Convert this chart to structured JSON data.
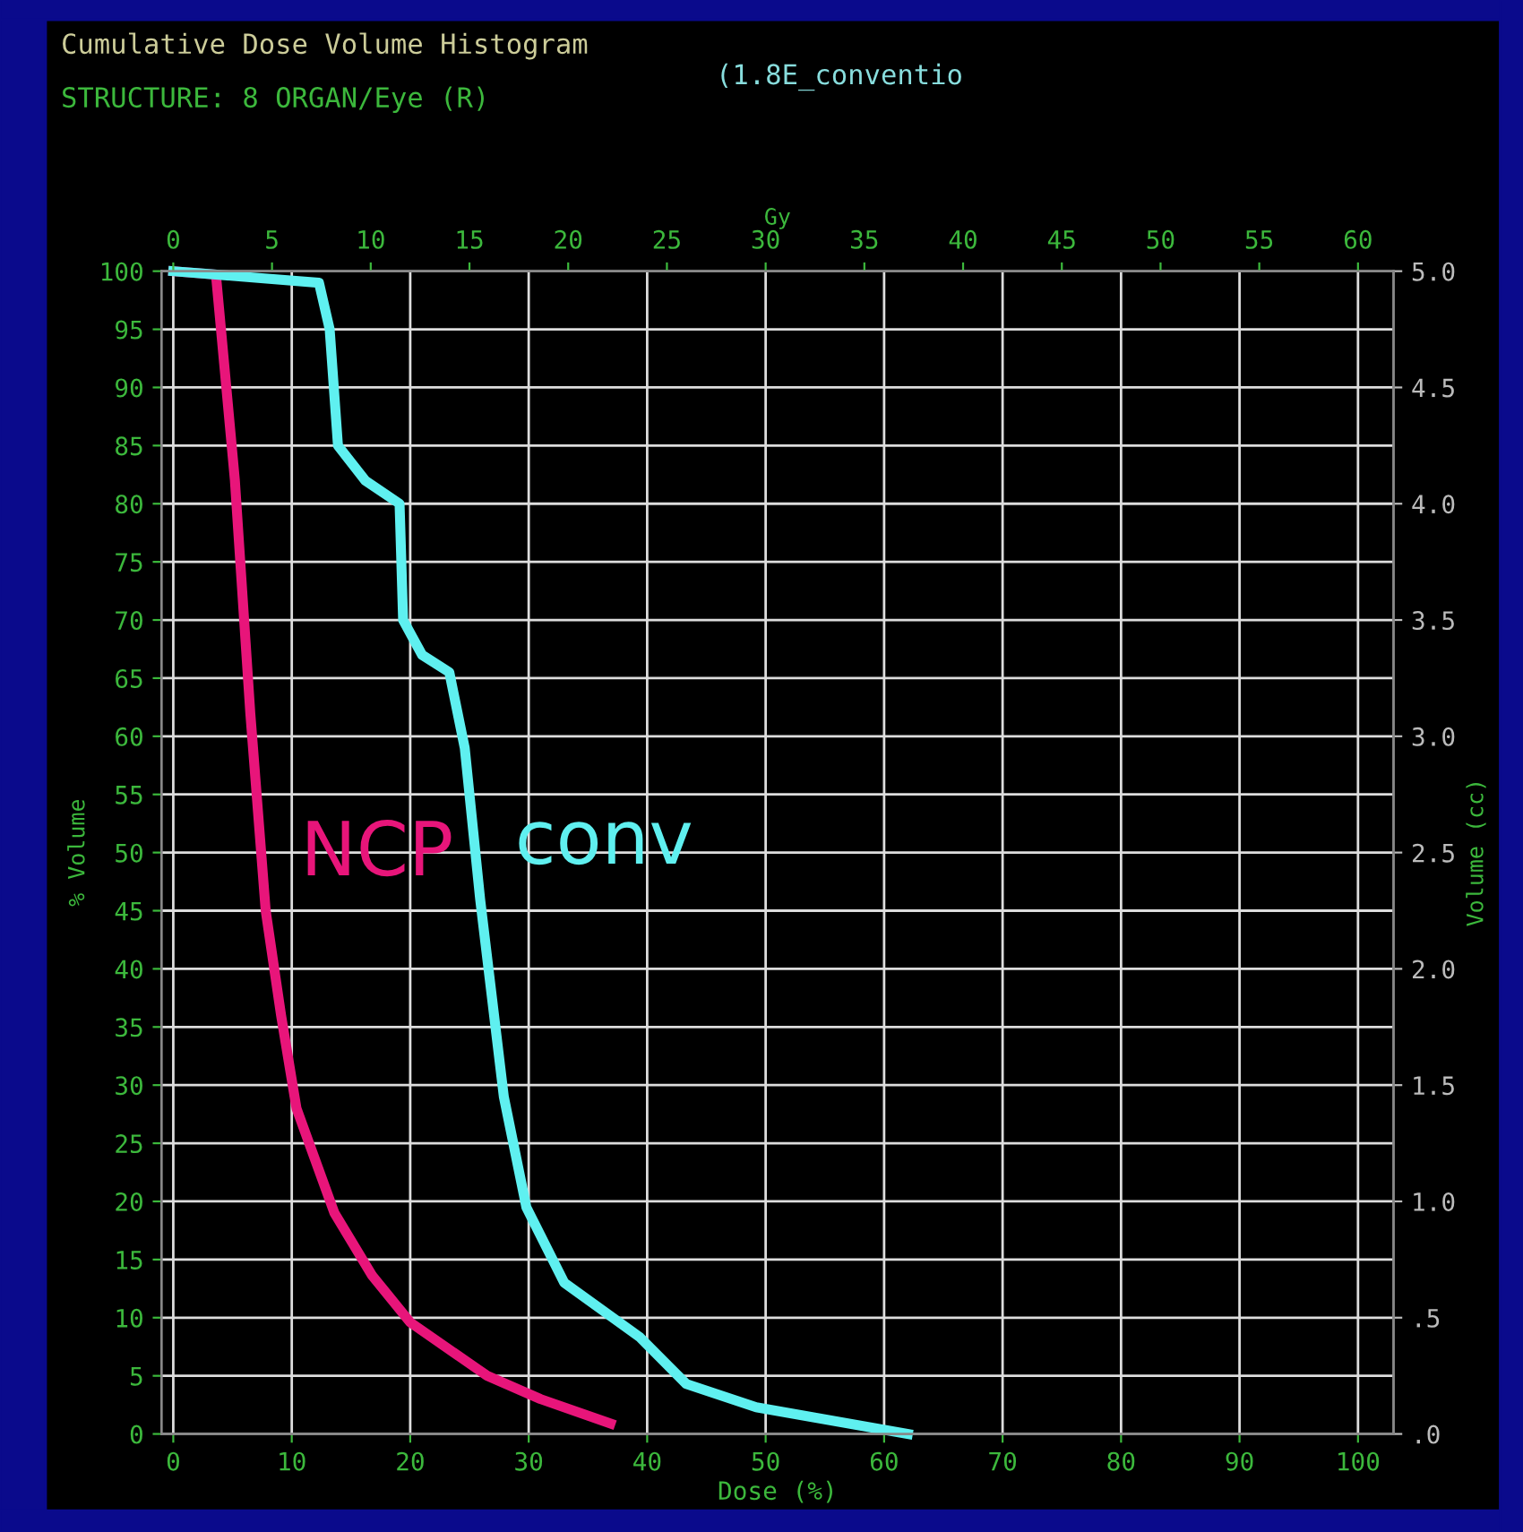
{
  "chart_data": {
    "type": "line",
    "title": "Cumulative Dose Volume Histogram",
    "subtitle": "STRUCTURE: 8 ORGAN/Eye (R)",
    "annotations": [
      "(1.8E_conventio"
    ],
    "xlabel": "Dose (%)",
    "x2label": "Gy",
    "ylabel": "% Volume",
    "y2label": "Volume (cc)",
    "series": [
      {
        "name": "NCP",
        "color": "#e8157a",
        "x": [
          0,
          3.6,
          5.2,
          6.5,
          7.8,
          9.1,
          10.4,
          13.6,
          16.8,
          20,
          26.5,
          31,
          36.9
        ],
        "values": [
          100,
          99.7,
          82,
          62,
          45,
          36,
          28,
          19,
          13.6,
          9.6,
          5,
          3,
          0.9
        ]
      },
      {
        "name": "conv",
        "color": "#5ff0f0",
        "x": [
          0,
          12.3,
          13.2,
          13.9,
          16.2,
          19.1,
          19.4,
          21,
          23.3,
          24.6,
          25.9,
          27.9,
          29.8,
          33,
          39.4,
          43.3,
          49.2,
          62
        ],
        "values": [
          100,
          99,
          95,
          85,
          82,
          80,
          70,
          67,
          65.5,
          59,
          46,
          29,
          19.5,
          13,
          8.3,
          4.3,
          2.3,
          0
        ]
      }
    ],
    "xlim": [
      -1,
      103
    ],
    "xticks": [
      0,
      10,
      20,
      30,
      40,
      50,
      60,
      70,
      80,
      90,
      100
    ],
    "x2lim": [
      -0.6,
      61.8
    ],
    "x2ticks": [
      0,
      5,
      10,
      15,
      20,
      25,
      30,
      35,
      40,
      45,
      50,
      55,
      60
    ],
    "ylim": [
      0,
      100
    ],
    "yticks": [
      0,
      5,
      10,
      15,
      20,
      25,
      30,
      35,
      40,
      45,
      50,
      55,
      60,
      65,
      70,
      75,
      80,
      85,
      90,
      95,
      100
    ],
    "y2lim": [
      0,
      5
    ],
    "y2ticks": [
      {
        "value": 0,
        "label": ".0"
      },
      {
        "value": 0.5,
        "label": ".5"
      },
      {
        "value": 1,
        "label": "1.0"
      },
      {
        "value": 1.5,
        "label": "1.5"
      },
      {
        "value": 2,
        "label": "2.0"
      },
      {
        "value": 2.5,
        "label": "2.5"
      },
      {
        "value": 3,
        "label": "3.0"
      },
      {
        "value": 3.5,
        "label": "3.5"
      },
      {
        "value": 4,
        "label": "4.0"
      },
      {
        "value": 4.5,
        "label": "4.5"
      },
      {
        "value": 5,
        "label": "5.0"
      }
    ],
    "grid": true,
    "line_style": "solid",
    "marker": "none"
  }
}
